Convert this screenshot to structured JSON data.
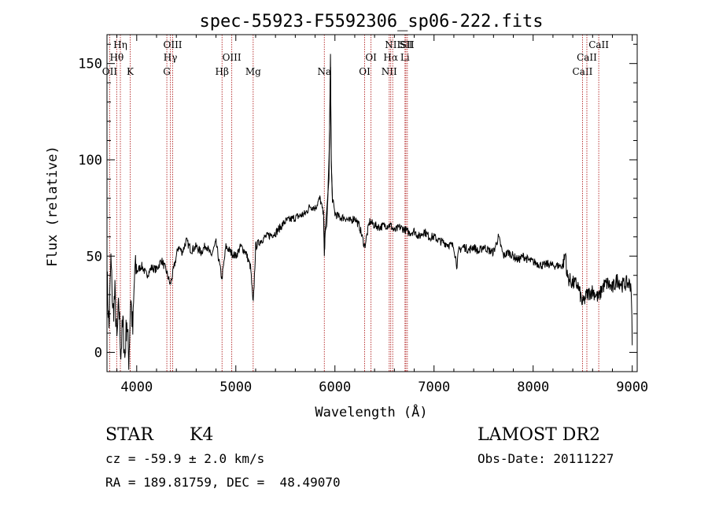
{
  "chart_data": {
    "type": "line",
    "title": "spec-55923-F5592306_sp06-222.fits",
    "xlabel": "Wavelength (Å)",
    "ylabel": "Flux (relative)",
    "xlim": [
      3700,
      9050
    ],
    "ylim": [
      -10,
      165
    ],
    "x_ticks": [
      4000,
      5000,
      6000,
      7000,
      8000,
      9000
    ],
    "y_ticks": [
      0,
      50,
      100,
      150
    ],
    "grid": false,
    "series": [
      {
        "x": [
          3700,
          3720,
          3740,
          3760,
          3780,
          3800,
          3820,
          3840,
          3860,
          3880,
          3900,
          3920,
          3940,
          3960,
          3980,
          4000,
          4050,
          4100,
          4150,
          4200,
          4250,
          4300,
          4340,
          4380,
          4420,
          4460,
          4500,
          4550,
          4600,
          4650,
          4700,
          4750,
          4800,
          4860,
          4900,
          4950,
          5000,
          5050,
          5100,
          5150,
          5175,
          5200,
          5250,
          5300,
          5400,
          5500,
          5600,
          5700,
          5750,
          5800,
          5850,
          5890,
          5893,
          5900,
          5920,
          5945,
          5955,
          5962,
          5975,
          6000,
          6050,
          6100,
          6150,
          6200,
          6250,
          6300,
          6350,
          6400,
          6450,
          6500,
          6563,
          6600,
          6650,
          6700,
          6750,
          6800,
          6850,
          6900,
          6950,
          7000,
          7050,
          7100,
          7150,
          7200,
          7230,
          7250,
          7300,
          7350,
          7400,
          7450,
          7500,
          7550,
          7600,
          7650,
          7700,
          7750,
          7800,
          7850,
          7900,
          7950,
          8000,
          8050,
          8100,
          8150,
          8200,
          8250,
          8300,
          8330,
          8340,
          8360,
          8400,
          8450,
          8498,
          8542,
          8600,
          8662,
          8700,
          8750,
          8800,
          8850,
          8900,
          8950,
          8990,
          9000
        ],
        "values": [
          40,
          12,
          48,
          20,
          30,
          5,
          25,
          0,
          15,
          -3,
          18,
          -5,
          30,
          10,
          43,
          42,
          45,
          40,
          44,
          43,
          48,
          42,
          35,
          45,
          55,
          52,
          58,
          53,
          55,
          52,
          56,
          50,
          57,
          38,
          55,
          52,
          50,
          55,
          52,
          44,
          24,
          55,
          58,
          60,
          62,
          68,
          70,
          72,
          76,
          75,
          80,
          70,
          50,
          60,
          68,
          108,
          155,
          100,
          80,
          72,
          70,
          70,
          68,
          70,
          65,
          55,
          68,
          66,
          65,
          66,
          66,
          63,
          65,
          64,
          62,
          63,
          60,
          63,
          60,
          60,
          58,
          57,
          56,
          55,
          45,
          53,
          55,
          53,
          55,
          52,
          55,
          53,
          52,
          60,
          50,
          52,
          50,
          48,
          50,
          48,
          47,
          46,
          45,
          46,
          45,
          45,
          45,
          52,
          40,
          38,
          36,
          35,
          25,
          30,
          32,
          28,
          34,
          36,
          33,
          38,
          35,
          36,
          35,
          3
        ]
      }
    ],
    "lines": [
      {
        "label": "OII",
        "wavelength": 3727
      },
      {
        "label": "Hθ",
        "wavelength": 3798
      },
      {
        "label": "Hη",
        "wavelength": 3835
      },
      {
        "label": "K",
        "wavelength": 3934
      },
      {
        "label": "G",
        "wavelength": 4304
      },
      {
        "label": "Hγ",
        "wavelength": 4340
      },
      {
        "label": "OIII",
        "wavelength": 4363
      },
      {
        "label": "Hβ",
        "wavelength": 4861
      },
      {
        "label": "OIII",
        "wavelength": 4959
      },
      {
        "label": "Mg",
        "wavelength": 5175
      },
      {
        "label": "Na",
        "wavelength": 5893
      },
      {
        "label": "OI",
        "wavelength": 6300
      },
      {
        "label": "OI",
        "wavelength": 6364
      },
      {
        "label": "NII",
        "wavelength": 6548
      },
      {
        "label": "Hα",
        "wavelength": 6563
      },
      {
        "label": "NII",
        "wavelength": 6583
      },
      {
        "label": "Li",
        "wavelength": 6707
      },
      {
        "label": "SII",
        "wavelength": 6716
      },
      {
        "label": "SII",
        "wavelength": 6731
      },
      {
        "label": "CaII",
        "wavelength": 8498
      },
      {
        "label": "CaII",
        "wavelength": 8542
      },
      {
        "label": "CaII",
        "wavelength": 8662
      }
    ]
  },
  "info": {
    "class": "STAR",
    "subclass": "K4",
    "survey": "LAMOST DR2",
    "cz": "cz = -59.9 ± 2.0 km/s",
    "obs_date": "Obs-Date: 20111227",
    "coords": "RA = 189.81759, DEC =  48.49070"
  }
}
